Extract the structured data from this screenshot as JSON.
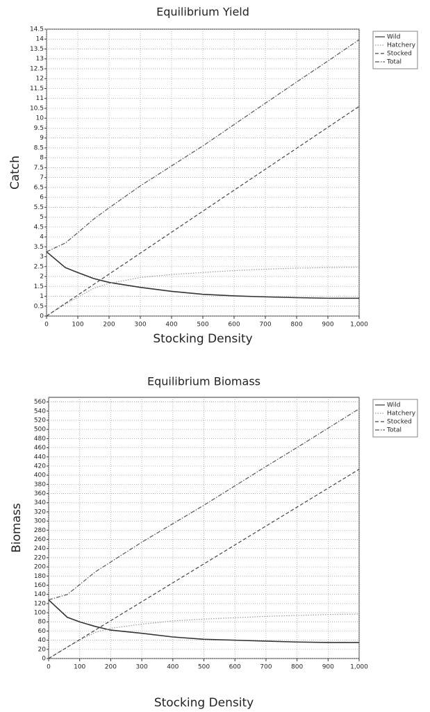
{
  "chart_data": [
    {
      "type": "line",
      "title": "Equilibrium Yield",
      "x_label": "Stocking Density",
      "y_label": "Catch",
      "x": [
        0,
        60,
        100,
        150,
        200,
        300,
        400,
        500,
        600,
        700,
        800,
        900,
        1000
      ],
      "series": [
        {
          "name": "Wild",
          "color": "#333333",
          "style": "solid",
          "values": [
            3.25,
            2.45,
            2.2,
            1.9,
            1.7,
            1.45,
            1.25,
            1.1,
            1.02,
            0.97,
            0.93,
            0.9,
            0.9
          ]
        },
        {
          "name": "Hatchery",
          "color": "#999999",
          "style": "dotted",
          "values": [
            0,
            0.6,
            0.95,
            1.4,
            1.65,
            1.95,
            2.1,
            2.2,
            2.3,
            2.37,
            2.42,
            2.45,
            2.47
          ]
        },
        {
          "name": "Stocked",
          "color": "#444444",
          "style": "dashed",
          "values": [
            0,
            0.64,
            1.06,
            1.59,
            2.12,
            3.18,
            4.24,
            5.3,
            6.36,
            7.42,
            8.48,
            9.54,
            10.6
          ]
        },
        {
          "name": "Total",
          "color": "#555555",
          "style": "dashdot",
          "values": [
            3.25,
            3.69,
            4.21,
            4.89,
            5.47,
            6.58,
            7.59,
            8.6,
            9.68,
            10.76,
            11.83,
            12.89,
            13.97
          ]
        }
      ],
      "xlim": [
        0,
        1000
      ],
      "xticks": [
        0,
        100,
        200,
        300,
        400,
        500,
        600,
        700,
        800,
        900,
        {
          "value": 1000,
          "label": "1,000"
        }
      ],
      "ylim": [
        0,
        14.5
      ],
      "yticks": [
        0,
        0.5,
        1,
        1.5,
        2,
        2.5,
        3,
        3.5,
        4,
        4.5,
        5,
        5.5,
        6,
        6.5,
        7,
        7.5,
        8,
        8.5,
        9,
        9.5,
        10,
        10.5,
        11,
        11.5,
        12,
        12.5,
        13,
        13.5,
        14,
        14.5
      ],
      "grid": true,
      "legend": "outside-top-right"
    },
    {
      "type": "line",
      "title": "Equilibrium Biomass",
      "x_label": "Stocking Density",
      "y_label": "Biomass",
      "x": [
        0,
        60,
        100,
        150,
        200,
        300,
        400,
        500,
        600,
        700,
        800,
        900,
        1000
      ],
      "series": [
        {
          "name": "Wild",
          "color": "#333333",
          "style": "solid",
          "values": [
            128,
            90,
            80,
            70,
            62,
            55,
            47,
            42,
            40,
            38,
            36,
            35,
            35
          ]
        },
        {
          "name": "Hatchery",
          "color": "#999999",
          "style": "dotted",
          "values": [
            0,
            25,
            40,
            57,
            66,
            75,
            82,
            86,
            89,
            92,
            94,
            96,
            97
          ]
        },
        {
          "name": "Stocked",
          "color": "#444444",
          "style": "dashed",
          "values": [
            0,
            24.8,
            41.3,
            62,
            82.6,
            123.9,
            165.2,
            206.5,
            247.8,
            289.1,
            330.4,
            371.7,
            413
          ]
        },
        {
          "name": "Total",
          "color": "#555555",
          "style": "dashdot",
          "values": [
            128,
            139.8,
            161.3,
            189,
            210.6,
            253.9,
            294.2,
            334.5,
            376.8,
            419.1,
            460.4,
            502.7,
            545
          ]
        }
      ],
      "xlim": [
        0,
        1000
      ],
      "xticks": [
        0,
        100,
        200,
        300,
        400,
        500,
        600,
        700,
        800,
        900,
        {
          "value": 1000,
          "label": "1,000"
        }
      ],
      "ylim": [
        0,
        570
      ],
      "yticks": [
        0,
        20,
        40,
        60,
        80,
        100,
        120,
        140,
        160,
        180,
        200,
        220,
        240,
        260,
        280,
        300,
        320,
        340,
        360,
        380,
        400,
        420,
        440,
        460,
        480,
        500,
        520,
        540,
        560
      ],
      "grid": true,
      "legend": "outside-top-right"
    }
  ]
}
